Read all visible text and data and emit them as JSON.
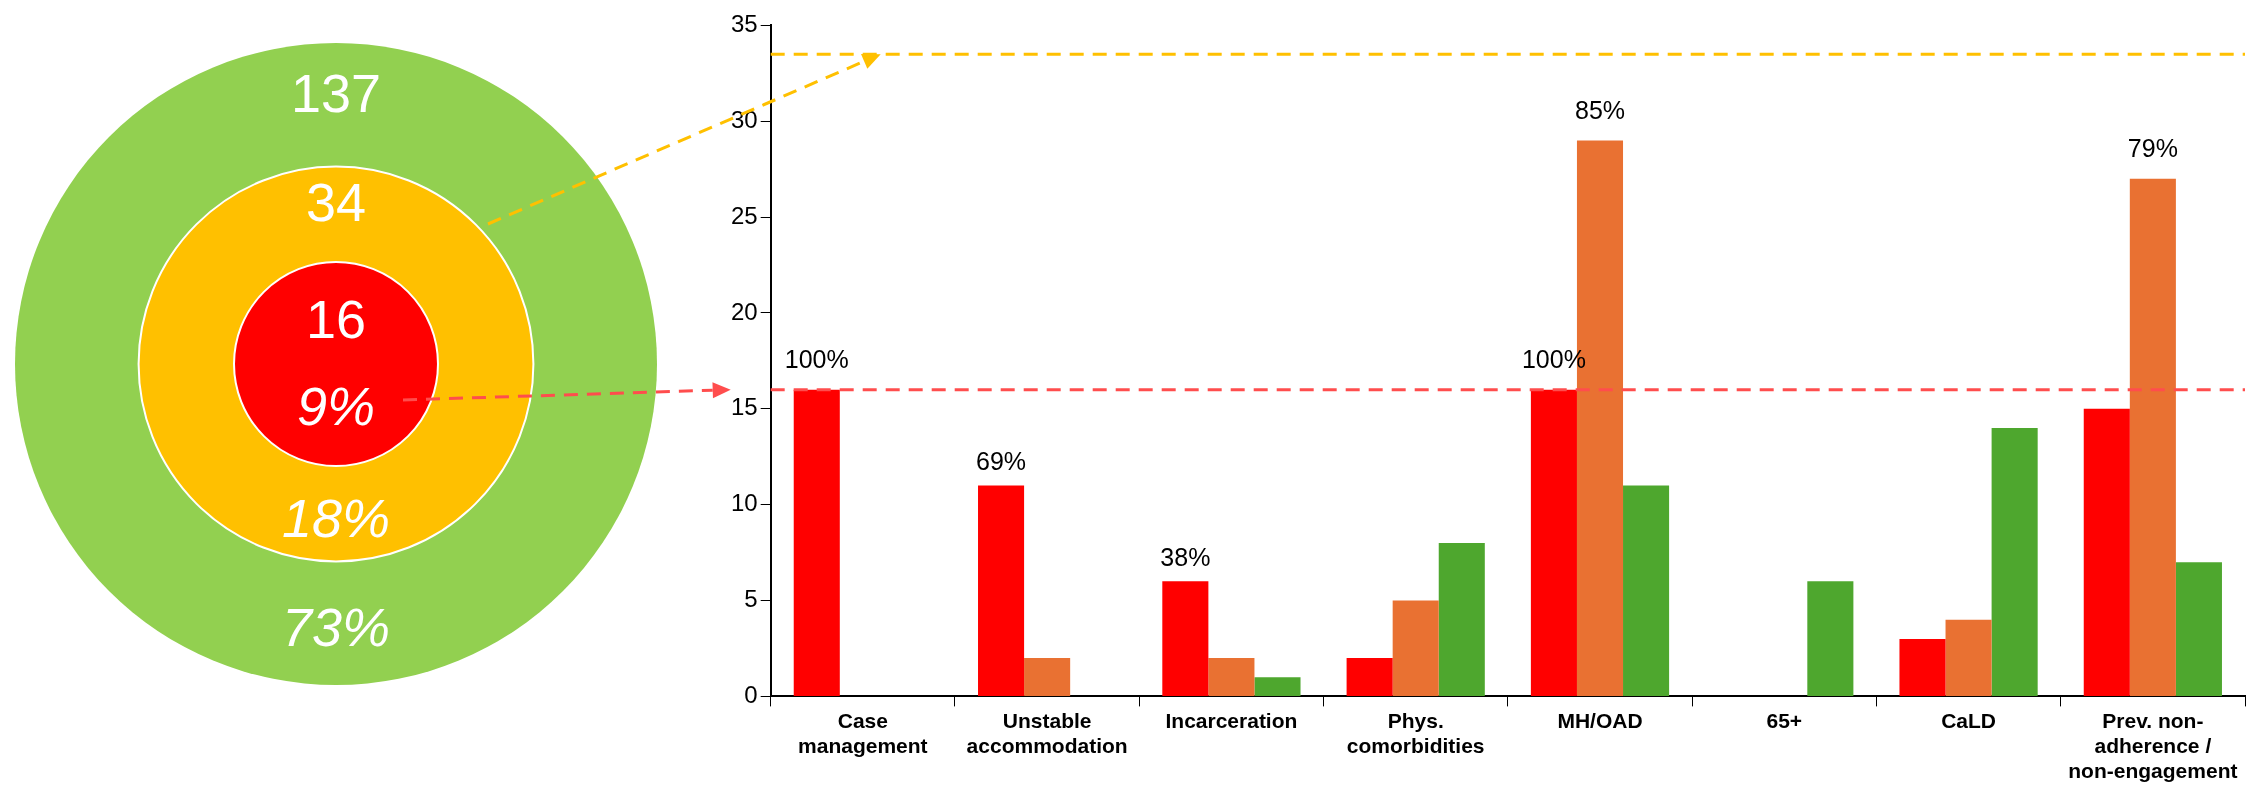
{
  "chart_data": [
    {
      "type": "other",
      "annotations": [
        "137",
        "73%",
        "34",
        "18%",
        "16",
        "9%"
      ],
      "colors": [
        "#92d050",
        "#ffc000",
        "#ff0000"
      ]
    },
    {
      "type": "bar",
      "categories": [
        "Case\nmanagement",
        "Unstable\naccommodation",
        "Incarceration",
        "Phys.\ncomorbidities",
        "MH/OAD",
        "65+",
        "CaLD",
        "Prev. non-\nadherence /\nnon-engagement"
      ],
      "series": [
        {
          "color": "#ff0000",
          "values": [
            16,
            11,
            6,
            2,
            16,
            null,
            3,
            15
          ]
        },
        {
          "color": "#e97132",
          "values": [
            null,
            2,
            2,
            5,
            29,
            null,
            4,
            27
          ]
        },
        {
          "color": "#4ea72e",
          "values": [
            null,
            null,
            1,
            8,
            11,
            6,
            14,
            7
          ]
        }
      ],
      "annotations": [
        {
          "text": "100%",
          "x": "Case\nmanagement",
          "y": 16
        },
        "69%",
        "38%",
        {
          "text": "100%",
          "x": "MH/OAD",
          "y": 16
        },
        {
          "text": "85%",
          "x": "MH/OAD",
          "y": 29
        },
        {
          "text": "79%",
          "x": "Prev. non-\nadherence /\nnon-engagement",
          "y": 27
        }
      ],
      "ylim": [
        0,
        35
      ],
      "yticks": [
        0,
        5,
        10,
        15,
        20,
        25,
        30,
        35
      ],
      "ref_lines": [
        {
          "axis": "y",
          "value": 33.5,
          "color": "#ffc000",
          "line_style": "dashed"
        },
        {
          "axis": "y",
          "value": 16,
          "color": "#ff4d4d",
          "line_style": "dashed"
        }
      ]
    }
  ]
}
